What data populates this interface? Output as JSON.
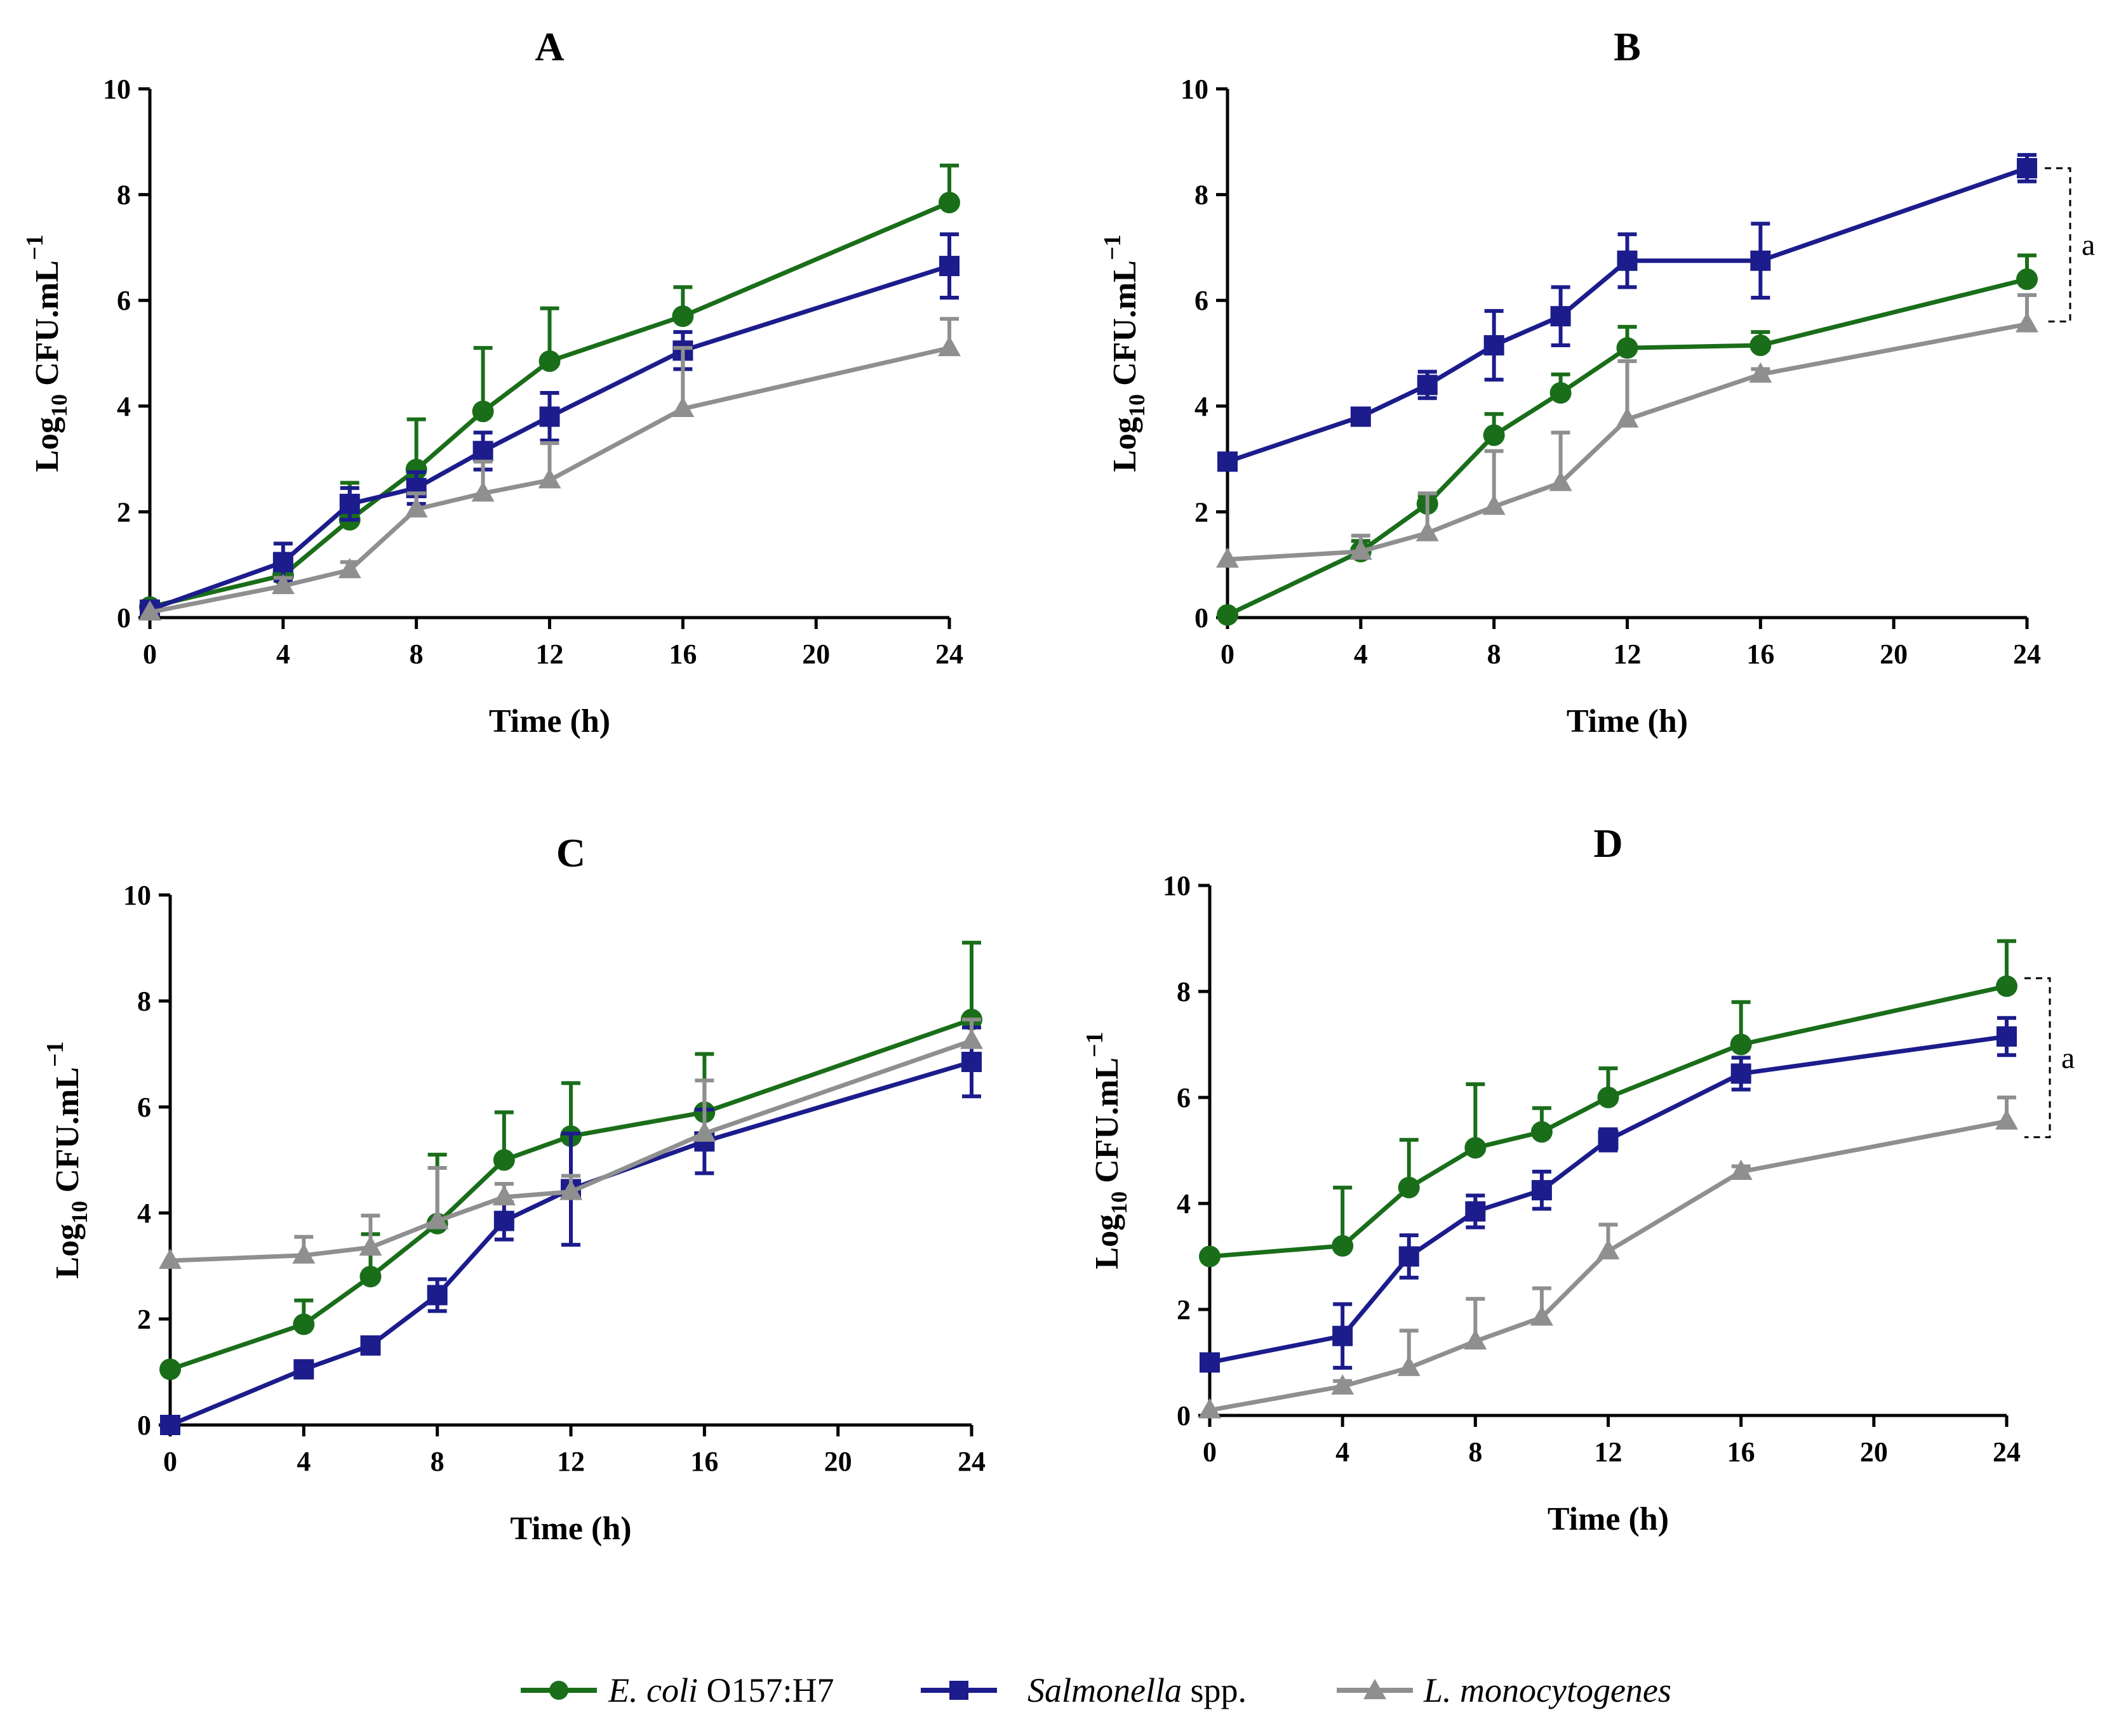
{
  "series_styles": [
    {
      "key": "ecoli",
      "color": "#1a6e1a",
      "marker": "circle"
    },
    {
      "key": "salmonella",
      "color": "#1c1c8c",
      "marker": "square"
    },
    {
      "key": "listeria",
      "color": "#8f8f8f",
      "marker": "triangle"
    }
  ],
  "legend": {
    "ecoli_italic": "E. coli",
    "ecoli_rest": " O157:H7",
    "salmonella_italic": "Salmonella",
    "salmonella_rest": " spp.",
    "listeria_italic": "L. monocytogenes"
  },
  "chart_data": [
    {
      "type": "line",
      "title": "A",
      "xlabel": "Time (h)",
      "ylabel_main": "Log",
      "ylabel_sub": "10",
      "ylabel_rest": " CFU.mL",
      "ylabel_sup": "−1",
      "xlim": [
        0,
        24
      ],
      "ylim": [
        0,
        10
      ],
      "xticks": [
        0,
        4,
        8,
        12,
        16,
        20,
        24
      ],
      "yticks": [
        0,
        2,
        4,
        6,
        8,
        10
      ],
      "x": [
        0,
        4,
        6,
        8,
        10,
        12,
        16,
        24
      ],
      "series": [
        {
          "name": "E. coli O157:H7",
          "values": [
            0.2,
            0.8,
            1.85,
            2.8,
            3.9,
            4.85,
            5.7,
            7.85
          ],
          "errors": [
            0,
            0.3,
            0.7,
            0.95,
            1.2,
            1.0,
            0.55,
            0.7
          ]
        },
        {
          "name": "Salmonella spp.",
          "values": [
            0.15,
            1.05,
            2.15,
            2.45,
            3.15,
            3.8,
            5.05,
            6.65
          ],
          "errors": [
            0,
            0.35,
            0.3,
            0.3,
            0.35,
            0.45,
            0.35,
            0.6
          ]
        },
        {
          "name": "L. monocytogenes",
          "values": [
            0.1,
            0.6,
            0.9,
            2.05,
            2.35,
            2.6,
            3.95,
            5.1
          ],
          "errors": [
            0,
            0.15,
            0.15,
            0.3,
            0.6,
            0.7,
            1.15,
            0.55
          ]
        }
      ]
    },
    {
      "type": "line",
      "title": "B",
      "xlabel": "Time (h)",
      "ylabel_main": "Log",
      "ylabel_sub": "10",
      "ylabel_rest": " CFU.mL",
      "ylabel_sup": "−1",
      "xlim": [
        0,
        24
      ],
      "ylim": [
        0,
        10
      ],
      "xticks": [
        0,
        4,
        8,
        12,
        16,
        20,
        24
      ],
      "yticks": [
        0,
        2,
        4,
        6,
        8,
        10
      ],
      "x": [
        0,
        4,
        6,
        8,
        10,
        12,
        16,
        24
      ],
      "series": [
        {
          "name": "E. coli O157:H7",
          "values": [
            0.05,
            1.25,
            2.15,
            3.45,
            4.25,
            5.1,
            5.15,
            6.4
          ],
          "errors": [
            0,
            0.2,
            0.15,
            0.4,
            0.35,
            0.4,
            0.25,
            0.45
          ]
        },
        {
          "name": "Salmonella spp.",
          "values": [
            2.95,
            3.8,
            4.4,
            5.15,
            5.7,
            6.75,
            6.75,
            8.5
          ],
          "errors": [
            0,
            0.1,
            0.25,
            0.65,
            0.55,
            0.5,
            0.7,
            0.25
          ]
        },
        {
          "name": "L. monocytogenes",
          "values": [
            1.1,
            1.25,
            1.6,
            2.1,
            2.55,
            3.75,
            4.6,
            5.55
          ],
          "errors": [
            0,
            0.3,
            0.75,
            1.05,
            0.95,
            1.1,
            0.1,
            0.55
          ]
        }
      ],
      "annotation": {
        "label": "a",
        "from": 8.5,
        "to": 5.6
      }
    },
    {
      "type": "line",
      "title": "C",
      "xlabel": "Time (h)",
      "ylabel_main": "Log",
      "ylabel_sub": "10",
      "ylabel_rest": " CFU.mL",
      "ylabel_sup": "−1",
      "xlim": [
        0,
        24
      ],
      "ylim": [
        0,
        10
      ],
      "xticks": [
        0,
        4,
        8,
        12,
        16,
        20,
        24
      ],
      "yticks": [
        0,
        2,
        4,
        6,
        8,
        10
      ],
      "x": [
        0,
        4,
        6,
        8,
        10,
        12,
        16,
        24
      ],
      "series": [
        {
          "name": "E. coli O157:H7",
          "values": [
            1.05,
            1.9,
            2.8,
            3.8,
            5.0,
            5.45,
            5.9,
            7.65
          ],
          "errors": [
            0,
            0.45,
            0.8,
            1.3,
            0.9,
            1.0,
            1.1,
            1.45
          ]
        },
        {
          "name": "Salmonella spp.",
          "values": [
            0.0,
            1.05,
            1.5,
            2.45,
            3.85,
            4.45,
            5.35,
            6.85
          ],
          "errors": [
            0,
            0.1,
            0.1,
            0.3,
            0.35,
            1.05,
            0.6,
            0.65
          ]
        },
        {
          "name": "L. monocytogenes",
          "values": [
            3.1,
            3.2,
            3.35,
            3.85,
            4.3,
            4.4,
            5.5,
            7.25
          ],
          "errors": [
            0,
            0.35,
            0.6,
            1.0,
            0.25,
            0.3,
            1.0,
            0.4
          ]
        }
      ]
    },
    {
      "type": "line",
      "title": "D",
      "xlabel": "Time (h)",
      "ylabel_main": "Log",
      "ylabel_sub": "10",
      "ylabel_rest": " CFU.mL",
      "ylabel_sup": "−1",
      "xlim": [
        0,
        24
      ],
      "ylim": [
        0,
        10
      ],
      "xticks": [
        0,
        4,
        8,
        12,
        16,
        20,
        24
      ],
      "yticks": [
        0,
        2,
        4,
        6,
        8,
        10
      ],
      "x": [
        0,
        4,
        6,
        8,
        10,
        12,
        16,
        24
      ],
      "series": [
        {
          "name": "E. coli O157:H7",
          "values": [
            3.0,
            3.2,
            4.3,
            5.05,
            5.35,
            6.0,
            7.0,
            8.1
          ],
          "errors": [
            0,
            1.1,
            0.9,
            1.2,
            0.45,
            0.55,
            0.8,
            0.85
          ]
        },
        {
          "name": "Salmonella spp.",
          "values": [
            1.0,
            1.5,
            3.0,
            3.85,
            4.25,
            5.2,
            6.45,
            7.15
          ],
          "errors": [
            0,
            0.6,
            0.4,
            0.3,
            0.35,
            0.2,
            0.3,
            0.35
          ]
        },
        {
          "name": "L. monocytogenes",
          "values": [
            0.1,
            0.55,
            0.9,
            1.4,
            1.85,
            3.1,
            4.6,
            5.55
          ],
          "errors": [
            0,
            0.1,
            0.7,
            0.8,
            0.55,
            0.5,
            0.1,
            0.45
          ]
        }
      ],
      "annotation": {
        "label": "a",
        "from": 8.25,
        "to": 5.25
      }
    }
  ]
}
